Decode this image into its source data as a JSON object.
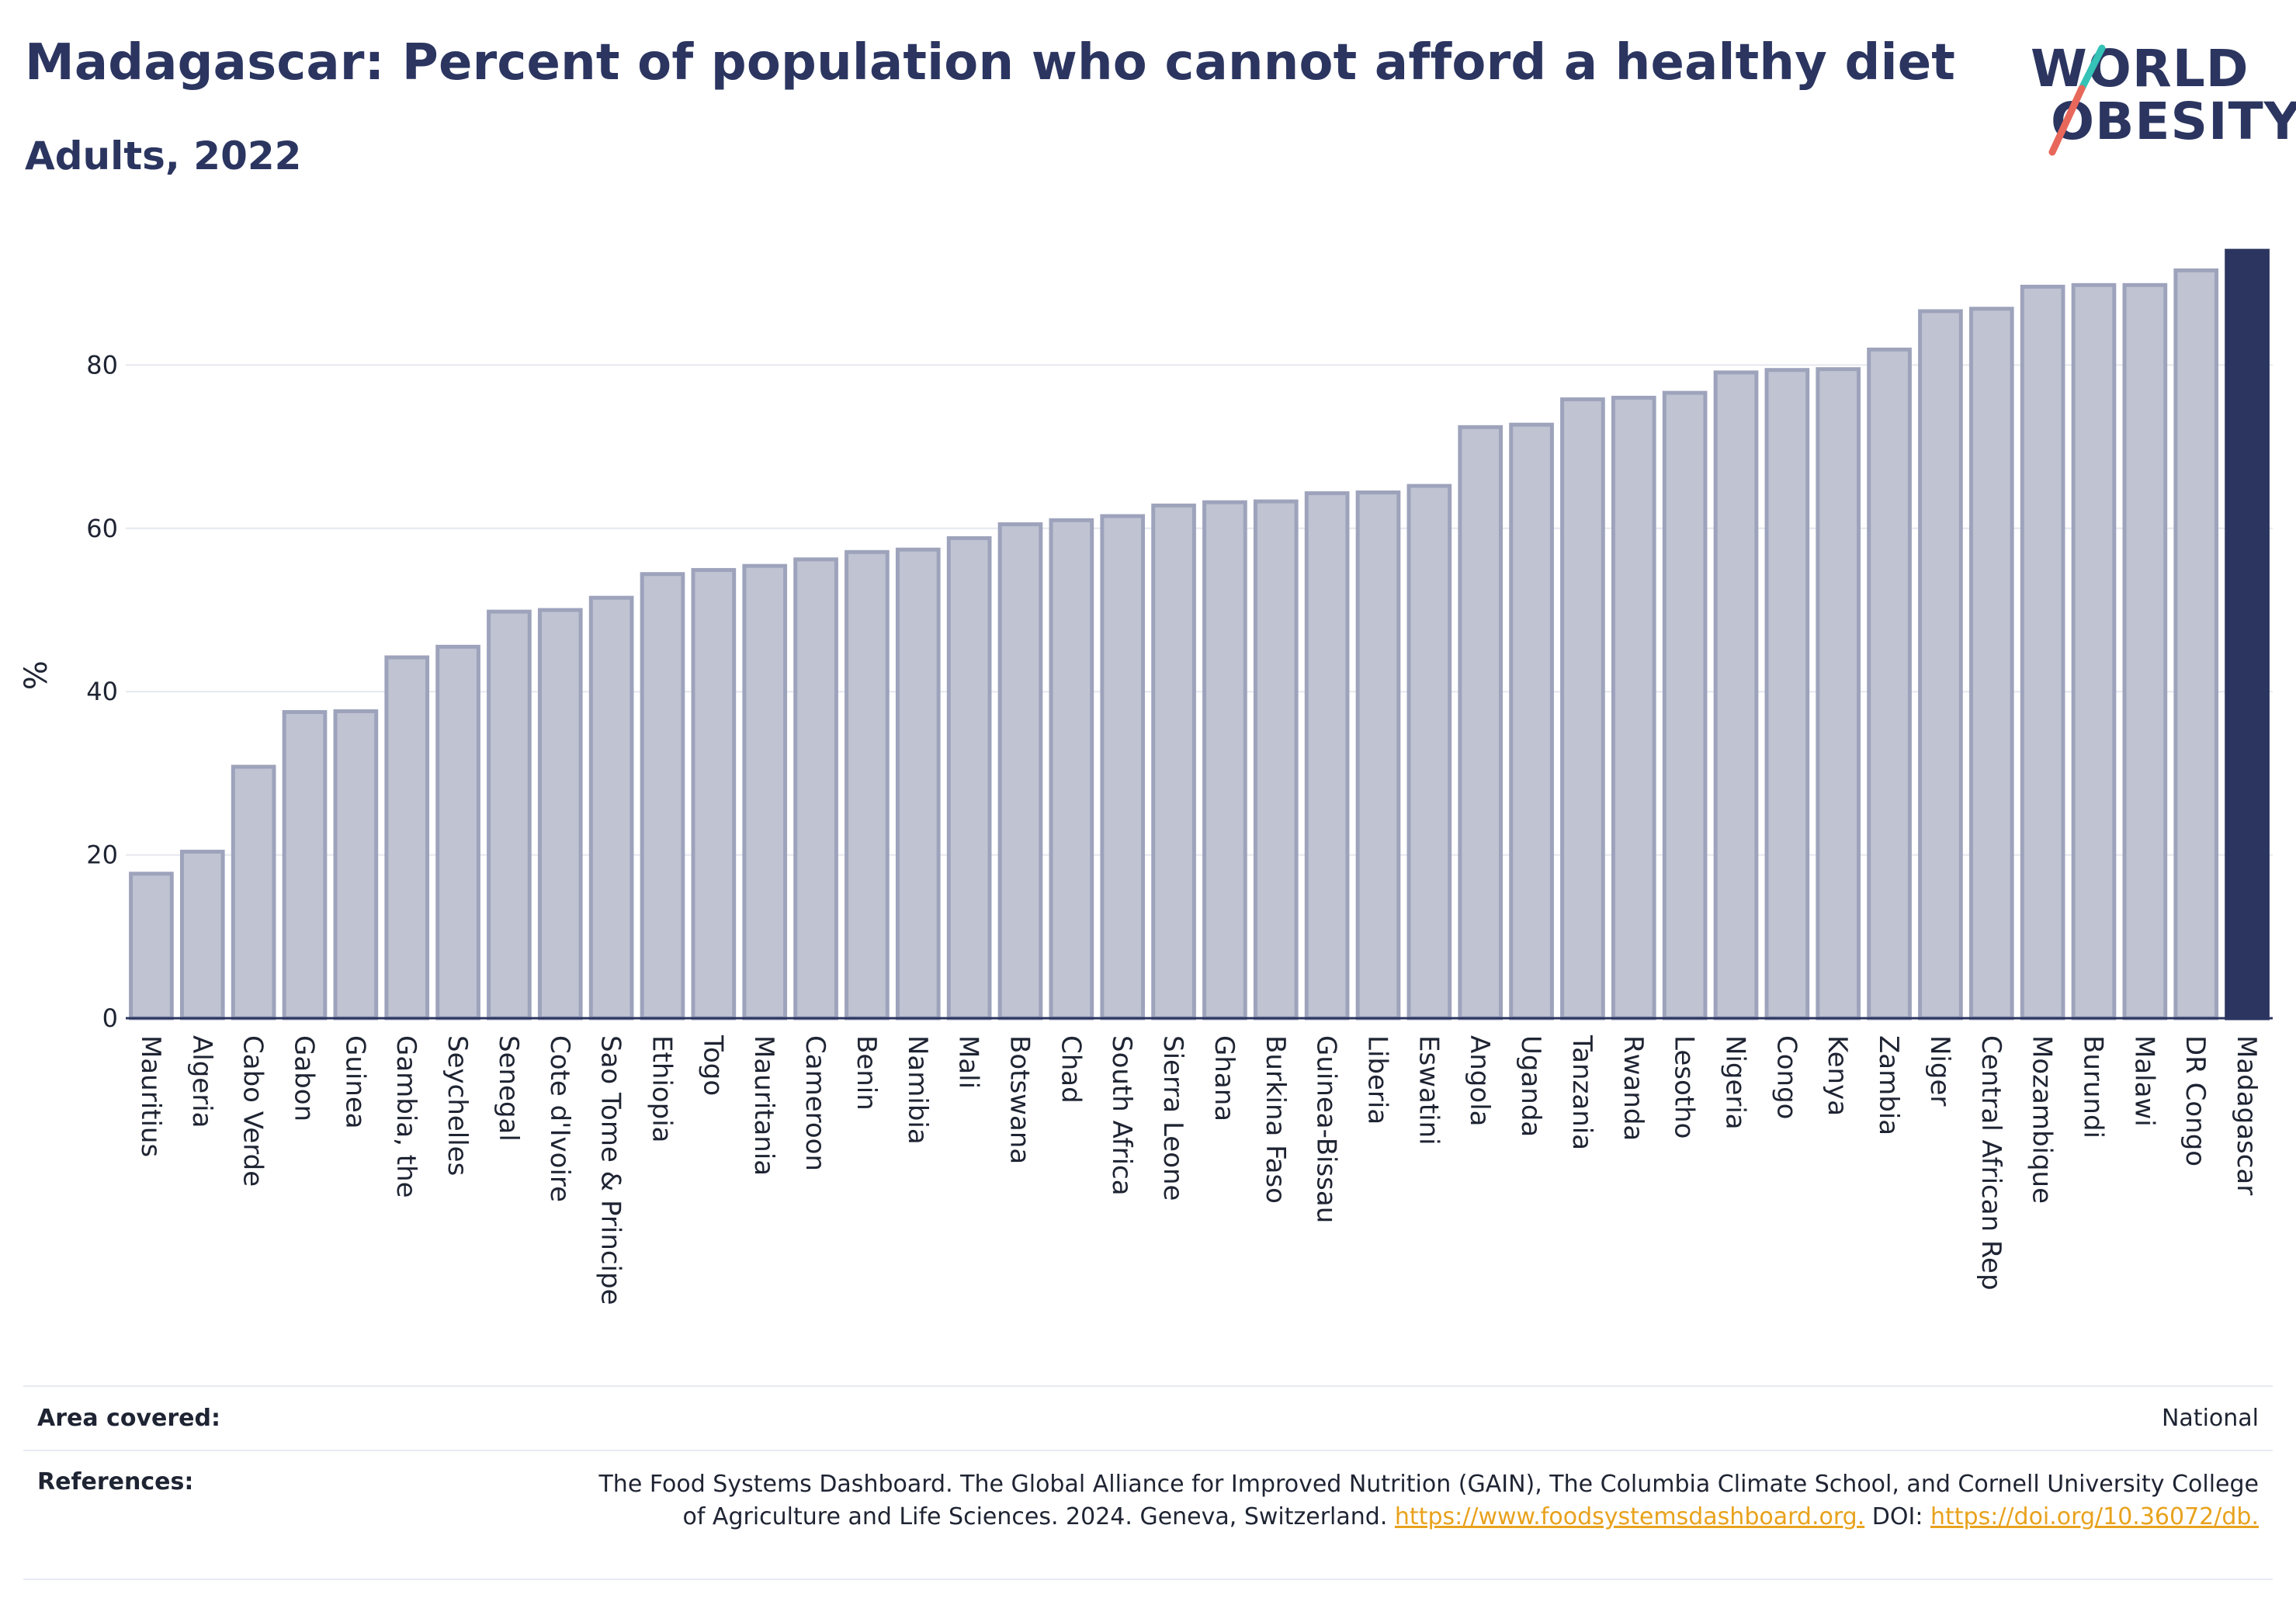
{
  "header": {
    "title": "Madagascar: Percent of population who cannot afford a healthy diet",
    "subtitle": "Adults, 2022"
  },
  "logo": {
    "line1": "WORLD",
    "line2": "OBESITY",
    "slash_colors": [
      "#35c2b7",
      "#e8675b"
    ]
  },
  "colors": {
    "bar_fill": "#bfc3d2",
    "bar_stroke": "#9ea3bc",
    "highlight": "#2b3560",
    "grid": "#e6e8ef",
    "text": "#1f2433"
  },
  "chart_data": {
    "type": "bar",
    "ylabel": "%",
    "xlabel": "",
    "ylim": [
      0,
      97.5
    ],
    "yticks": [
      0,
      20,
      40,
      60,
      80
    ],
    "grid": true,
    "highlight_category": "Madagascar",
    "categories": [
      "Mauritius",
      "Algeria",
      "Cabo Verde",
      "Gabon",
      "Guinea",
      "Gambia, the",
      "Seychelles",
      "Senegal",
      "Cote d'Ivoire",
      "Sao Tome & Principe",
      "Ethiopia",
      "Togo",
      "Mauritania",
      "Cameroon",
      "Benin",
      "Namibia",
      "Mali",
      "Botswana",
      "Chad",
      "South Africa",
      "Sierra Leone",
      "Ghana",
      "Burkina Faso",
      "Guinea-Bissau",
      "Liberia",
      "Eswatini",
      "Angola",
      "Uganda",
      "Tanzania",
      "Rwanda",
      "Lesotho",
      "Nigeria",
      "Congo",
      "Kenya",
      "Zambia",
      "Niger",
      "Central African Rep",
      "Mozambique",
      "Burundi",
      "Malawi",
      "DR Congo",
      "Madagascar"
    ],
    "values": [
      17.7,
      20.4,
      30.8,
      37.5,
      37.6,
      44.2,
      45.5,
      49.8,
      50.0,
      51.5,
      54.4,
      54.9,
      55.4,
      56.2,
      57.1,
      57.4,
      58.8,
      60.5,
      61.0,
      61.5,
      62.8,
      63.2,
      63.3,
      64.3,
      64.4,
      65.2,
      72.4,
      72.7,
      75.8,
      76.0,
      76.6,
      79.1,
      79.4,
      79.5,
      81.9,
      86.6,
      86.9,
      89.6,
      89.8,
      89.8,
      91.6,
      94.0
    ]
  },
  "info": {
    "area_label": "Area covered:",
    "area_value": "National",
    "references_label": "References:",
    "references_text": "The Food Systems Dashboard. The Global Alliance for Improved Nutrition (GAIN), The Columbia Climate School, and Cornell University College of Agriculture and Life Sciences. 2024. Geneva, Switzerland.",
    "references_link1": "https://www.foodsystemsdashboard.org.",
    "references_doi_label": "DOI:",
    "references_link2": "https://doi.org/10.36072/db."
  }
}
